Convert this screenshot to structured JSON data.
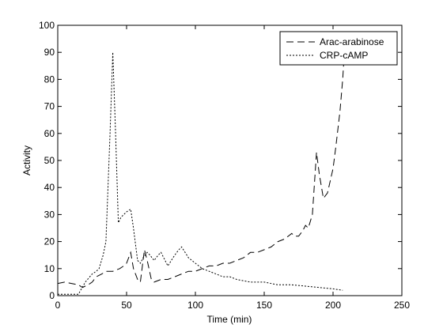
{
  "chart_data": {
    "type": "line",
    "xlabel": "Time (min)",
    "ylabel": "Activity",
    "xlim": [
      0,
      250
    ],
    "ylim": [
      0,
      100
    ],
    "xticks": [
      "0",
      "50",
      "100",
      "150",
      "200",
      "250"
    ],
    "yticks": [
      "0",
      "10",
      "20",
      "30",
      "40",
      "50",
      "60",
      "70",
      "80",
      "90",
      "100"
    ],
    "grid": false,
    "legend_position": "top-right",
    "series": [
      {
        "name": "Arac-arabinose",
        "style": "dashed",
        "color": "#000000",
        "x": [
          0,
          5,
          10,
          15,
          18,
          22,
          25,
          28,
          32,
          35,
          40,
          45,
          48,
          50,
          53,
          55,
          58,
          60,
          63,
          65,
          68,
          70,
          75,
          80,
          85,
          90,
          95,
          100,
          105,
          110,
          115,
          120,
          125,
          130,
          135,
          140,
          145,
          150,
          155,
          160,
          165,
          170,
          172,
          175,
          178,
          180,
          182,
          185,
          188,
          190,
          193,
          196,
          200,
          202,
          205,
          207,
          208
        ],
        "y": [
          4.5,
          5,
          4.5,
          4,
          3,
          4,
          5,
          7,
          8,
          9,
          9,
          10,
          11,
          12,
          16,
          10,
          6,
          5,
          17,
          13,
          6,
          5,
          6,
          6,
          7,
          8,
          9,
          9,
          10,
          11,
          11,
          12,
          12,
          13,
          14,
          16,
          16,
          17,
          18,
          20,
          21,
          23,
          22,
          22,
          24,
          26,
          25,
          30,
          53,
          45,
          36,
          38,
          47,
          55,
          68,
          80,
          88
        ]
      },
      {
        "name": "CRP-cAMP",
        "style": "dotted",
        "color": "#000000",
        "x": [
          0,
          5,
          10,
          15,
          20,
          25,
          28,
          30,
          33,
          35,
          38,
          40,
          42,
          44,
          46,
          48,
          50,
          53,
          55,
          58,
          60,
          62,
          65,
          67,
          70,
          73,
          75,
          78,
          80,
          85,
          88,
          90,
          95,
          100,
          105,
          110,
          115,
          120,
          125,
          130,
          140,
          150,
          160,
          170,
          180,
          190,
          200,
          207
        ],
        "y": [
          0.5,
          0.5,
          0.5,
          0.5,
          5,
          8,
          9,
          10,
          15,
          20,
          60,
          90,
          60,
          27,
          29,
          30,
          31,
          32,
          25,
          13,
          12,
          14,
          16,
          15,
          13,
          15,
          16,
          13,
          11,
          15,
          17,
          18,
          14,
          12,
          10,
          9,
          8,
          7,
          7,
          6,
          5,
          5,
          4,
          4,
          3.5,
          3,
          2.5,
          2
        ]
      }
    ]
  }
}
